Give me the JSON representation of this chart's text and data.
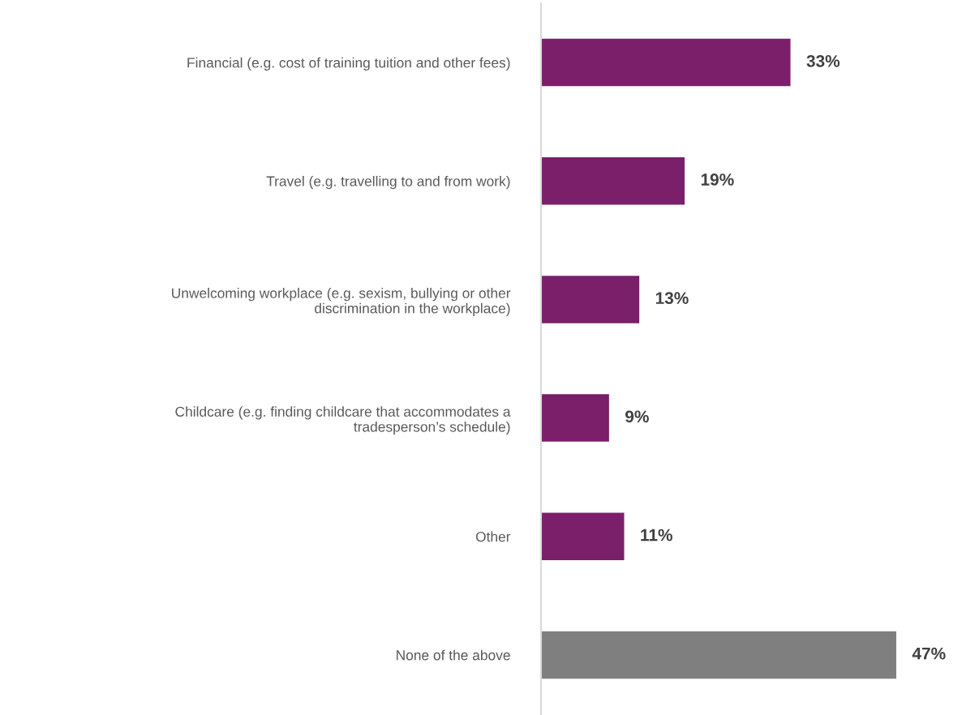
{
  "chart_data": {
    "type": "bar",
    "orientation": "horizontal",
    "categories": [
      "Financial (e.g. cost of training tuition and other fees)",
      "Travel (e.g. travelling to and from work)",
      "Unwelcoming workplace (e.g. sexism, bullying or other\ndiscrimination in the workplace)",
      "Childcare (e.g. finding childcare that accommodates a\ntradesperson’s schedule)",
      "Other",
      "None of the above"
    ],
    "values": [
      33,
      19,
      13,
      9,
      11,
      47
    ],
    "colors": [
      "#7b1f6a",
      "#7b1f6a",
      "#7b1f6a",
      "#7b1f6a",
      "#7b1f6a",
      "#7f7f7f"
    ],
    "value_labels": [
      "33%",
      "19%",
      "13%",
      "9%",
      "11%",
      "47%"
    ],
    "grid": false,
    "legend": false
  }
}
